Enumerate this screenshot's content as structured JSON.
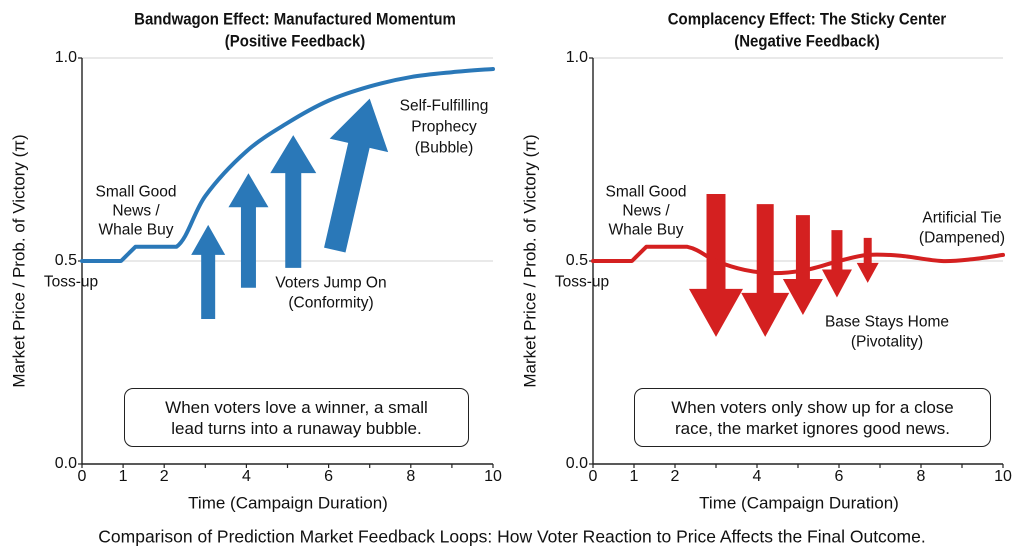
{
  "caption": "Comparison of Prediction Market Feedback Loops: How Voter Reaction to Price Affects the Final Outcome.",
  "chart_data": [
    {
      "type": "line",
      "title": [
        "Bandwagon Effect: Manufactured Momentum",
        "(Positive Feedback)"
      ],
      "xlabel": "Time (Campaign Duration)",
      "ylabel": "Market Price / Prob. of Victory (π)",
      "xlim": [
        0,
        10
      ],
      "ylim": [
        0,
        1
      ],
      "xticks": [
        0,
        1,
        2,
        3,
        4,
        5,
        6,
        7,
        8,
        9,
        10
      ],
      "xtick_labels": [
        "0",
        "1",
        "2",
        "4",
        "6",
        "8",
        "10"
      ],
      "xtick_label_values": [
        0,
        1,
        2,
        4,
        6,
        8,
        10
      ],
      "yticks": [
        0.0,
        0.5,
        1.0
      ],
      "ytick_labels": [
        "0.0",
        "0.5",
        "1.0"
      ],
      "grid": "horizontal at 0.5 and 1.0",
      "color": "#2a78b8",
      "series": [
        {
          "x": [
            0,
            0.95,
            1.3,
            2.3,
            3,
            4,
            5,
            6,
            7,
            8,
            9,
            10
          ],
          "y": [
            0.5,
            0.5,
            0.535,
            0.535,
            0.66,
            0.77,
            0.84,
            0.895,
            0.93,
            0.953,
            0.965,
            0.973
          ]
        }
      ],
      "arrows": [
        {
          "from": [
            3.07,
            0.357
          ],
          "to": [
            3.07,
            0.589
          ]
        },
        {
          "from": [
            4.05,
            0.434
          ],
          "to": [
            4.05,
            0.716
          ]
        },
        {
          "from": [
            5.14,
            0.483
          ],
          "to": [
            5.14,
            0.81
          ]
        },
        {
          "from": [
            6.15,
            0.527
          ],
          "to": [
            7.0,
            0.9
          ]
        }
      ],
      "annotations": {
        "tossup": "Toss-up",
        "news": [
          "Small Good",
          "News /",
          "Whale Buy"
        ],
        "voters": [
          "Voters Jump On",
          "(Conformity)"
        ],
        "outcome": [
          "Self-Fulfilling",
          "Prophecy",
          "(Bubble)"
        ]
      },
      "box": [
        "When voters love a winner, a small",
        "lead turns into a runaway bubble."
      ]
    },
    {
      "type": "line",
      "title": [
        "Complacency Effect: The Sticky Center",
        "(Negative Feedback)"
      ],
      "xlabel": "Time (Campaign Duration)",
      "ylabel": "Market Price / Prob. of Victory (π)",
      "xlim": [
        0,
        10
      ],
      "ylim": [
        0,
        1
      ],
      "xticks": [
        0,
        1,
        2,
        3,
        4,
        5,
        6,
        7,
        8,
        9,
        10
      ],
      "xtick_labels": [
        "0",
        "1",
        "2",
        "4",
        "6",
        "8",
        "10"
      ],
      "xtick_label_values": [
        0,
        1,
        2,
        4,
        6,
        8,
        10
      ],
      "yticks": [
        0.0,
        0.5,
        1.0
      ],
      "ytick_labels": [
        "0.0",
        "0.5",
        "1.0"
      ],
      "grid": "horizontal at 0.5 and 1.0",
      "color": "#d42020",
      "series": [
        {
          "x": [
            0,
            0.95,
            1.3,
            2.3,
            3,
            3.7,
            4.4,
            5.2,
            6,
            6.7,
            7.5,
            8.5,
            9.3,
            10
          ],
          "y": [
            0.5,
            0.5,
            0.535,
            0.535,
            0.5,
            0.478,
            0.47,
            0.478,
            0.5,
            0.515,
            0.513,
            0.5,
            0.505,
            0.515
          ]
        }
      ],
      "arrows": [
        {
          "from": [
            3.0,
            0.665
          ],
          "to": [
            3.0,
            0.313
          ]
        },
        {
          "from": [
            4.2,
            0.64
          ],
          "to": [
            4.2,
            0.313
          ]
        },
        {
          "from": [
            5.12,
            0.613
          ],
          "to": [
            5.12,
            0.367
          ]
        },
        {
          "from": [
            5.95,
            0.576
          ],
          "to": [
            5.95,
            0.41
          ]
        },
        {
          "from": [
            6.7,
            0.557
          ],
          "to": [
            6.7,
            0.446
          ]
        }
      ],
      "annotations": {
        "tossup": "Toss-up",
        "news": [
          "Small Good",
          "News /",
          "Whale Buy"
        ],
        "voters": [
          "Base Stays Home",
          "(Pivotality)"
        ],
        "outcome": [
          "Artificial Tie",
          "(Dampened)"
        ]
      },
      "box": [
        "When voters only show up for a close",
        "race, the market ignores good news."
      ]
    }
  ]
}
